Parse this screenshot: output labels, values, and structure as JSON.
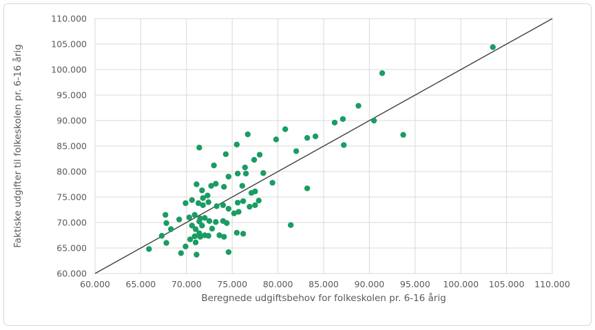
{
  "chart_data": {
    "type": "scatter",
    "title": "",
    "xlabel": "Beregnede udgiftsbehov for folkeskolen pr. 6-16 årig",
    "ylabel": "Faktiske udgifter til folkeskolen pr. 6-16 årig",
    "xlim": [
      60000,
      110000
    ],
    "ylim": [
      60000,
      110000
    ],
    "tick_step": 5000,
    "grid": true,
    "legend": "none",
    "x_tick_labels": [
      "60.000",
      "65.000",
      "70.000",
      "75.000",
      "80.000",
      "85.000",
      "90.000",
      "95.000",
      "100.000",
      "105.000",
      "110.000"
    ],
    "y_tick_labels": [
      "60.000",
      "65.000",
      "70.000",
      "75.000",
      "80.000",
      "85.000",
      "90.000",
      "95.000",
      "100.000",
      "105.000",
      "110.000"
    ],
    "reference_line": {
      "type": "identity",
      "from": [
        60000,
        60000
      ],
      "to": [
        110000,
        110000
      ]
    },
    "series": [
      {
        "name": "observations",
        "marker": "circle",
        "points": [
          [
            103500,
            104400
          ],
          [
            91400,
            99300
          ],
          [
            88800,
            92900
          ],
          [
            90500,
            90000
          ],
          [
            87100,
            90300
          ],
          [
            86200,
            89600
          ],
          [
            93700,
            87200
          ],
          [
            87200,
            85200
          ],
          [
            84100,
            86900
          ],
          [
            83200,
            86600
          ],
          [
            82000,
            84000
          ],
          [
            80800,
            88300
          ],
          [
            83200,
            76700
          ],
          [
            81400,
            69500
          ],
          [
            76700,
            87300
          ],
          [
            79800,
            86300
          ],
          [
            75500,
            85300
          ],
          [
            71400,
            84700
          ],
          [
            74300,
            83400
          ],
          [
            78000,
            83300
          ],
          [
            77400,
            82300
          ],
          [
            73000,
            81200
          ],
          [
            76400,
            80800
          ],
          [
            75600,
            79600
          ],
          [
            76500,
            79600
          ],
          [
            78400,
            79700
          ],
          [
            74600,
            79000
          ],
          [
            79400,
            77800
          ],
          [
            76100,
            77200
          ],
          [
            77100,
            75800
          ],
          [
            77500,
            76100
          ],
          [
            71100,
            77500
          ],
          [
            71700,
            76300
          ],
          [
            72700,
            77200
          ],
          [
            73200,
            77600
          ],
          [
            74100,
            77000
          ],
          [
            72300,
            75300
          ],
          [
            71800,
            74800
          ],
          [
            70600,
            74400
          ],
          [
            69900,
            73800
          ],
          [
            71300,
            73800
          ],
          [
            71800,
            73400
          ],
          [
            73300,
            73200
          ],
          [
            74000,
            73400
          ],
          [
            74600,
            72700
          ],
          [
            75200,
            71800
          ],
          [
            75700,
            72100
          ],
          [
            75600,
            73900
          ],
          [
            76200,
            74200
          ],
          [
            76900,
            73100
          ],
          [
            77500,
            73400
          ],
          [
            77900,
            74300
          ],
          [
            72400,
            74000
          ],
          [
            67700,
            71500
          ],
          [
            67800,
            69900
          ],
          [
            67300,
            67400
          ],
          [
            67800,
            66000
          ],
          [
            68300,
            68700
          ],
          [
            69200,
            70600
          ],
          [
            70300,
            71000
          ],
          [
            70600,
            69400
          ],
          [
            70900,
            71500
          ],
          [
            71500,
            70800
          ],
          [
            71700,
            69400
          ],
          [
            71000,
            68700
          ],
          [
            71400,
            67900
          ],
          [
            70900,
            67300
          ],
          [
            70400,
            66700
          ],
          [
            71000,
            66100
          ],
          [
            69900,
            65300
          ],
          [
            65900,
            64800
          ],
          [
            69400,
            64000
          ],
          [
            71100,
            63700
          ],
          [
            72500,
            70300
          ],
          [
            73200,
            70100
          ],
          [
            74000,
            70300
          ],
          [
            74400,
            69900
          ],
          [
            72000,
            67500
          ],
          [
            71500,
            67200
          ],
          [
            72400,
            67400
          ],
          [
            73600,
            67500
          ],
          [
            74100,
            67200
          ],
          [
            75500,
            68000
          ],
          [
            76200,
            67800
          ],
          [
            74600,
            64200
          ],
          [
            72000,
            70900
          ],
          [
            71400,
            70200
          ],
          [
            72800,
            68800
          ]
        ]
      }
    ]
  },
  "colors": {
    "point": "#1a9c63",
    "reference_line": "#3f3f3f",
    "grid": "#d9d9d9",
    "plot_border": "#d9d9d9",
    "axis_text": "#595959",
    "card_border": "#d6d6d6",
    "background": "#ffffff"
  }
}
